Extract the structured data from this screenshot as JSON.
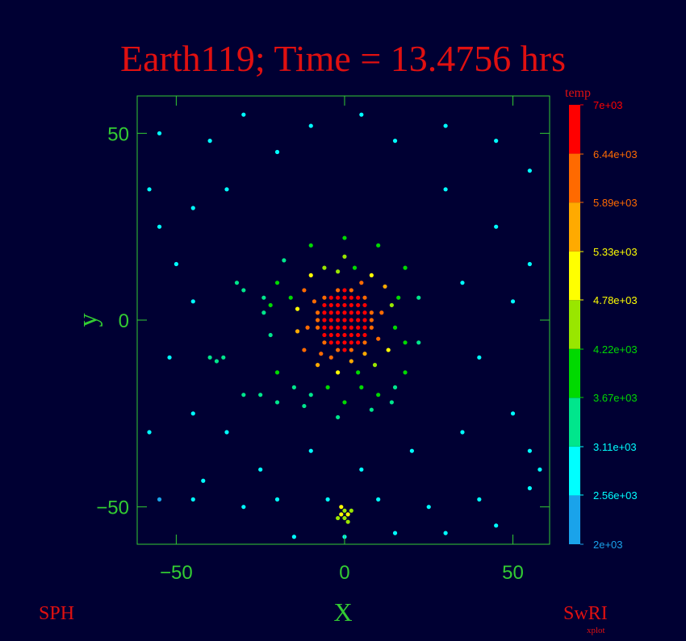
{
  "chart_data": {
    "type": "scatter",
    "title": "Earth119; Time = 13.4756 hrs",
    "x_label": "X",
    "y_label": "y",
    "colorbar_label": "temp",
    "footer_left": "SPH",
    "footer_right": "SwRI",
    "footer_right_sub": "xplot",
    "xlim": [
      -61.6,
      60.9
    ],
    "ylim": [
      -60,
      60
    ],
    "xticks": [
      {
        "value": -50,
        "label": "−50"
      },
      0,
      50
    ],
    "yticks": [
      {
        "value": -50,
        "label": "−50"
      },
      0,
      50
    ],
    "clim": [
      2000,
      7000
    ],
    "cticks": [
      {
        "value": 7000,
        "label": "7e+03"
      },
      {
        "value": 6440,
        "label": "6.44e+03"
      },
      {
        "value": 5890,
        "label": "5.89e+03"
      },
      {
        "value": 5330,
        "label": "5.33e+03"
      },
      {
        "value": 4780,
        "label": "4.78e+03"
      },
      {
        "value": 4220,
        "label": "4.22e+03"
      },
      {
        "value": 3670,
        "label": "3.67e+03"
      },
      {
        "value": 3110,
        "label": "3.11e+03"
      },
      {
        "value": 2560,
        "label": "2.56e+03"
      },
      {
        "value": 2000,
        "label": "2e+03"
      }
    ],
    "colors": [
      "#1aa3ea",
      "#00ffff",
      "#00e68c",
      "#00d900",
      "#99e600",
      "#ffff00",
      "#ffaa00",
      "#ff6a00",
      "#ff0000"
    ],
    "x": [
      -2,
      0,
      2,
      -6,
      -4,
      -2,
      0,
      2,
      4,
      6,
      -6,
      -4,
      -2,
      0,
      2,
      4,
      6,
      -8,
      -6,
      -4,
      -2,
      0,
      2,
      4,
      6,
      8,
      -8,
      -6,
      -4,
      -2,
      0,
      2,
      4,
      6,
      8,
      -8,
      -6,
      -4,
      -2,
      0,
      2,
      4,
      6,
      8,
      -6,
      -4,
      -2,
      0,
      2,
      4,
      6,
      -6,
      -4,
      -2,
      0,
      2,
      4,
      6,
      -2,
      0,
      2,
      -12,
      -10,
      -6,
      -2,
      3,
      8,
      12,
      14,
      15,
      13,
      9,
      4,
      -2,
      -8,
      -12,
      -14,
      -14,
      -11,
      10,
      11,
      -9,
      5,
      -4,
      2,
      6,
      -7,
      16,
      -16,
      0,
      18,
      -20,
      -18,
      -10,
      0,
      10,
      18,
      22,
      22,
      18,
      10,
      0,
      -10,
      -20,
      -22,
      -24,
      5,
      -5,
      -15,
      15,
      -25,
      -20,
      -30,
      -12,
      -2,
      8,
      14,
      -22,
      -24,
      -30,
      -32,
      -36,
      -38,
      -40,
      -55,
      -40,
      -30,
      -20,
      -10,
      5,
      15,
      30,
      45,
      55,
      -58,
      -45,
      -35,
      30,
      45,
      55,
      -55,
      -50,
      -45,
      -52,
      -58,
      -45,
      -35,
      -25,
      -10,
      5,
      20,
      35,
      50,
      55,
      40,
      50,
      35,
      -45,
      -30,
      -20,
      -5,
      10,
      25,
      40,
      55,
      -15,
      0,
      15,
      30,
      -55,
      -42,
      45,
      58,
      -1,
      1,
      0,
      0,
      -2,
      2,
      -1,
      1
    ],
    "y": [
      8,
      8,
      8,
      6,
      6,
      6,
      6,
      6,
      6,
      6,
      4,
      4,
      4,
      4,
      4,
      4,
      4,
      2,
      2,
      2,
      2,
      2,
      2,
      2,
      2,
      2,
      0,
      0,
      0,
      0,
      0,
      0,
      0,
      0,
      0,
      -2,
      -2,
      -2,
      -2,
      -2,
      -2,
      -2,
      -2,
      -2,
      -4,
      -4,
      -4,
      -4,
      -4,
      -4,
      -4,
      -6,
      -6,
      -6,
      -6,
      -6,
      -6,
      -6,
      -8,
      -8,
      -8,
      8,
      12,
      14,
      13,
      14,
      12,
      9,
      4,
      -2,
      -8,
      -12,
      -14,
      -14,
      -12,
      -8,
      -3,
      3,
      -2,
      -5,
      2,
      5,
      10,
      -10,
      -11,
      -9,
      -9,
      6,
      6,
      17,
      -6,
      10,
      16,
      20,
      22,
      20,
      14,
      6,
      -6,
      -14,
      -20,
      -22,
      -20,
      -14,
      -4,
      2,
      -18,
      -18,
      -18,
      -18,
      -20,
      -22,
      -20,
      -23,
      -26,
      -24,
      -22,
      4,
      6,
      8,
      10,
      -10,
      -11,
      -10,
      50,
      48,
      55,
      45,
      52,
      55,
      48,
      52,
      48,
      40,
      35,
      30,
      35,
      35,
      25,
      15,
      25,
      15,
      5,
      -10,
      -30,
      -25,
      -30,
      -40,
      -35,
      -40,
      -35,
      -30,
      -25,
      -35,
      -10,
      5,
      10,
      -48,
      -50,
      -48,
      -48,
      -48,
      -50,
      -48,
      -45,
      -58,
      -58,
      -57,
      -57,
      -48,
      -43,
      -55,
      -40,
      -52,
      -52,
      -51,
      -53,
      -53,
      -51,
      -50,
      -54
    ],
    "temp": [
      6000,
      6800,
      6000,
      6000,
      6800,
      6800,
      6800,
      6800,
      6800,
      6000,
      6800,
      6800,
      6800,
      6800,
      6800,
      6800,
      6800,
      6000,
      6800,
      6800,
      6800,
      6800,
      6800,
      6800,
      6800,
      6000,
      6000,
      6800,
      6800,
      6800,
      6800,
      6800,
      6800,
      6800,
      6000,
      6000,
      6800,
      6800,
      6800,
      6800,
      6800,
      6800,
      6800,
      6000,
      6800,
      6800,
      6800,
      6800,
      6800,
      6800,
      6800,
      6000,
      6800,
      6800,
      6800,
      6800,
      6800,
      6000,
      6000,
      6800,
      6000,
      6000,
      5000,
      4500,
      4300,
      4200,
      5000,
      5800,
      4400,
      4000,
      5200,
      4600,
      4100,
      5300,
      5600,
      6200,
      5700,
      5000,
      6300,
      6100,
      6000,
      6100,
      5900,
      6100,
      5500,
      5800,
      6000,
      4100,
      4200,
      4300,
      3800,
      3800,
      3600,
      3900,
      3700,
      3800,
      3700,
      3500,
      3600,
      3900,
      3700,
      3800,
      3600,
      3700,
      3500,
      3600,
      3900,
      3700,
      3600,
      3500,
      3400,
      3500,
      3400,
      3500,
      3300,
      3500,
      3400,
      3700,
      3600,
      3400,
      3400,
      3400,
      3400,
      3300,
      2900,
      3000,
      2900,
      3000,
      2900,
      3000,
      2900,
      2900,
      3000,
      2800,
      2700,
      2900,
      3000,
      2900,
      2900,
      2800,
      3000,
      2900,
      3000,
      2900,
      2700,
      2800,
      2900,
      2800,
      2900,
      3000,
      2900,
      2900,
      2800,
      2700,
      2900,
      2800,
      3000,
      2800,
      2900,
      2900,
      3000,
      2900,
      2900,
      2800,
      2600,
      2900,
      3000,
      2900,
      2800,
      2500,
      2800,
      2700,
      2600,
      4800,
      4900,
      4700,
      4600,
      4500,
      4700,
      4800,
      4500
    ]
  }
}
